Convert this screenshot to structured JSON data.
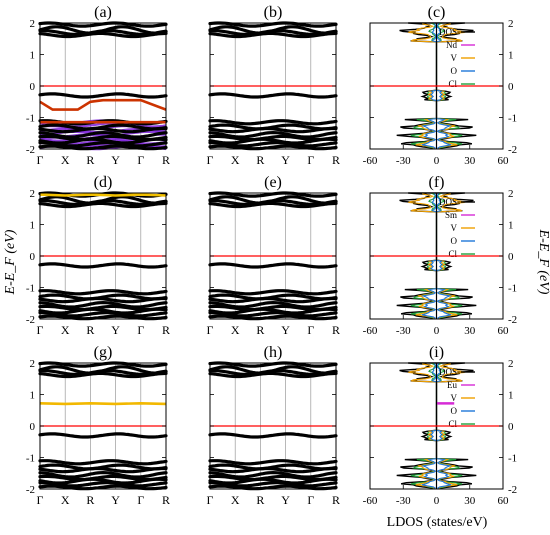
{
  "figure": {
    "ylabel_left": "E-E_F (eV)",
    "ylabel_right": "E-E_F (eV)",
    "xlabel_bottom": "LDOS (states/eV)"
  },
  "chart_data": {
    "type": "line",
    "band_kpath": [
      "Γ",
      "X",
      "R",
      "Y",
      "Γ",
      "R"
    ],
    "energy_ticks": [
      -2,
      -1,
      0,
      1,
      2
    ],
    "ldos_ticks": [
      -60,
      -30,
      0,
      30,
      60
    ],
    "ylim": [
      -2,
      2
    ],
    "ldos_xlim": [
      -60,
      60
    ],
    "fermi_level_eV": 0,
    "colors": {
      "DOS": "#000000",
      "Nd": "#d62bd6",
      "Sm": "#d62bd6",
      "Eu": "#d62bd6",
      "V": "#f0a000",
      "O": "#1f77d8",
      "Cl": "#22a03a",
      "fermi": "#ff0000",
      "nd_flat_band": "#cc3300",
      "nd_purple_band": "#7a1fd8",
      "sm_band": "#f2c000",
      "eu_band": "#f2b800"
    },
    "rows": [
      {
        "element": "Nd",
        "panels": [
          {
            "label": "(a)",
            "kind": "bands",
            "extra_bands": [
              {
                "role": "Nd-f flat band",
                "color_key": "nd_flat_band",
                "points": [
                  [
                    0,
                    -0.5
                  ],
                  [
                    0.5,
                    -0.75
                  ],
                  [
                    1.5,
                    -0.75
                  ],
                  [
                    2,
                    -0.5
                  ],
                  [
                    2.5,
                    -0.45
                  ],
                  [
                    4,
                    -0.45
                  ],
                  [
                    5,
                    -0.75
                  ]
                ]
              },
              {
                "role": "Nd-f split band",
                "color_key": "nd_flat_band",
                "points": [
                  [
                    0,
                    -1.15
                  ],
                  [
                    2,
                    -1.15
                  ],
                  [
                    5,
                    -1.15
                  ]
                ]
              }
            ],
            "purple_window": [
              -2,
              -1.1
            ]
          },
          {
            "label": "(b)",
            "kind": "bands"
          },
          {
            "label": "(c)",
            "kind": "ldos",
            "legend": [
              "DOS",
              "Nd",
              "V",
              "O",
              "Cl"
            ]
          }
        ]
      },
      {
        "element": "Sm",
        "panels": [
          {
            "label": "(d)",
            "kind": "bands",
            "extra_bands": [
              {
                "role": "Sm-f band",
                "color_key": "sm_band",
                "points": [
                  [
                    0,
                    1.95
                  ],
                  [
                    1,
                    1.92
                  ],
                  [
                    2,
                    1.95
                  ],
                  [
                    3,
                    1.92
                  ],
                  [
                    4,
                    1.95
                  ],
                  [
                    5,
                    1.92
                  ]
                ]
              }
            ]
          },
          {
            "label": "(e)",
            "kind": "bands"
          },
          {
            "label": "(f)",
            "kind": "ldos",
            "legend": [
              "DOS",
              "Sm",
              "V",
              "O",
              "Cl"
            ]
          }
        ]
      },
      {
        "element": "Eu",
        "panels": [
          {
            "label": "(g)",
            "kind": "bands",
            "extra_bands": [
              {
                "role": "Eu-f band",
                "color_key": "eu_band",
                "points": [
                  [
                    0,
                    0.72
                  ],
                  [
                    1,
                    0.7
                  ],
                  [
                    2,
                    0.72
                  ],
                  [
                    3,
                    0.7
                  ],
                  [
                    4,
                    0.72
                  ],
                  [
                    5,
                    0.7
                  ]
                ]
              }
            ]
          },
          {
            "label": "(h)",
            "kind": "bands"
          },
          {
            "label": "(i)",
            "kind": "ldos",
            "legend": [
              "DOS",
              "Eu",
              "V",
              "O",
              "Cl"
            ],
            "impurity_peak": {
              "energy": 0.72,
              "ldos": 16
            }
          }
        ]
      }
    ]
  }
}
